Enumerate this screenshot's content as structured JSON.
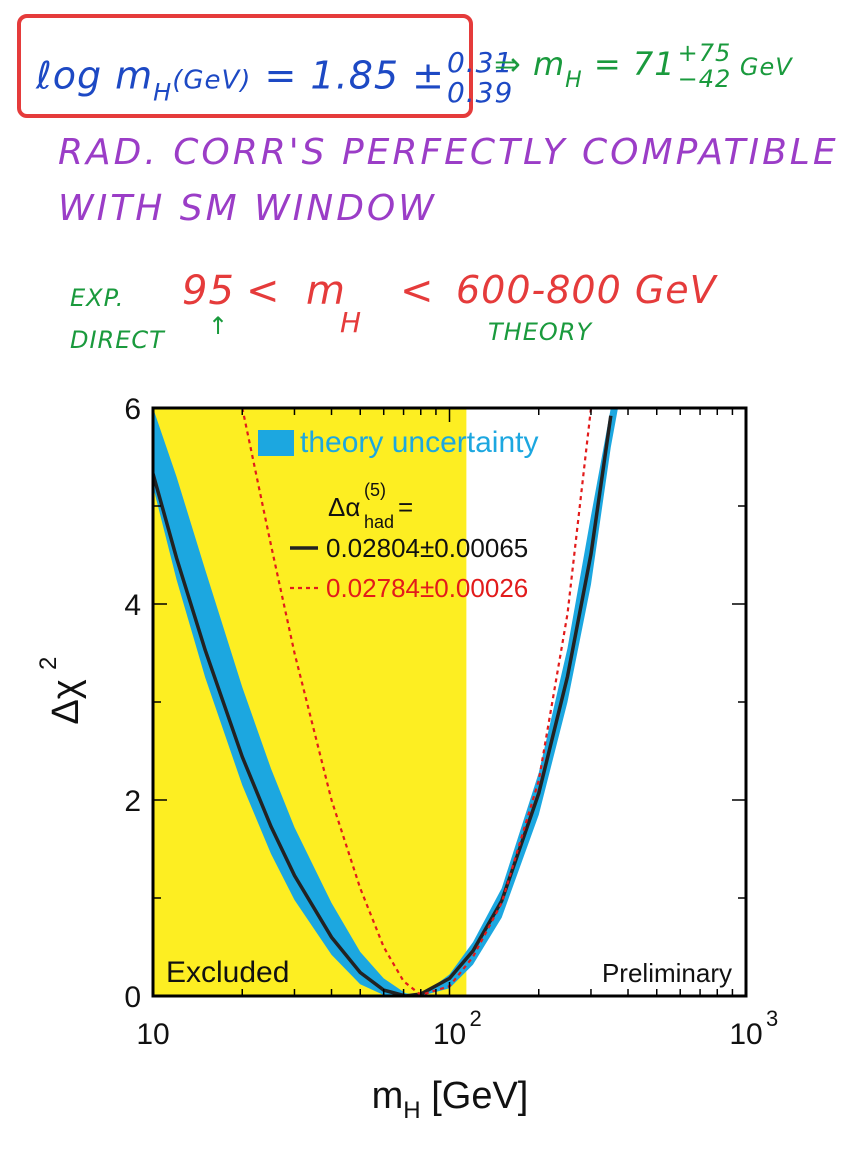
{
  "handwritten": {
    "formula_lhs": "ℓog m",
    "formula_lhs_sub": "H",
    "formula_lhs_unit": "(GeV)",
    "formula_eq": " = 1.85 ±",
    "formula_err_up": "0.31",
    "formula_err_down": "0.39",
    "result_arrow": "⇒ m",
    "result_sub": "H",
    "result_value": " = 71",
    "result_err_up": "+75",
    "result_err_down": "−42",
    "result_unit": " GeV",
    "line1": "RAD. CORR'S   PERFECTLY  COMPATIBLE",
    "line2": "WITH   SM   WINDOW",
    "exp": "EXP.",
    "direct": "DIRECT",
    "direct_arrow": "↑",
    "range_lower": "95",
    "range_lt": "<",
    "range_m": "m",
    "range_m_sub": "H",
    "range_upper": "600-800 GeV",
    "theory": "THEORY"
  },
  "chart_data": {
    "type": "line",
    "xlabel": "m",
    "xlabel_sub": "H",
    "xlabel_unit": " [GeV]",
    "ylabel": "Δχ",
    "ylabel_sup": "2",
    "x_scale": "log",
    "xlim": [
      10,
      1000
    ],
    "ylim": [
      0,
      6
    ],
    "x_ticks": [
      {
        "value": 10,
        "base": "10",
        "exp": ""
      },
      {
        "value": 100,
        "base": "10",
        "exp": "2"
      },
      {
        "value": 1000,
        "base": "10",
        "exp": "3"
      }
    ],
    "y_ticks": [
      0,
      2,
      4,
      6
    ],
    "excluded_region": {
      "xmax": 114,
      "label": "Excluded",
      "color": "#fdee22"
    },
    "preliminary_label": "Preliminary",
    "legend": {
      "band_label": "theory uncertainty",
      "band_color": "#1ca7e0",
      "header": "Δα",
      "header_sub": "had",
      "header_sup": "(5)",
      "header_eq": " =",
      "solid_label": "0.02804±0.00065",
      "dashed_label": "0.02784±0.00026",
      "solid_color": "#222222",
      "dashed_color": "#e21b1b"
    },
    "series": [
      {
        "name": "0.02804±0.00065",
        "style": "solid",
        "x": [
          10,
          12,
          15,
          20,
          25,
          30,
          40,
          50,
          60,
          71,
          80,
          100,
          120,
          150,
          200,
          250,
          300,
          350
        ],
        "y": [
          5.33,
          4.47,
          3.53,
          2.44,
          1.73,
          1.23,
          0.6,
          0.24,
          0.06,
          0.0,
          0.02,
          0.18,
          0.46,
          0.97,
          2.07,
          3.26,
          4.51,
          5.92
        ]
      },
      {
        "name": "0.02784±0.00026",
        "style": "dashed",
        "x": [
          20,
          25,
          30,
          40,
          50,
          60,
          70,
          80,
          100,
          120,
          150,
          200,
          250,
          300
        ],
        "y": [
          6.0,
          4.6,
          3.5,
          2.0,
          1.1,
          0.5,
          0.15,
          0.01,
          0.1,
          0.4,
          0.95,
          2.2,
          3.9,
          6.0
        ]
      }
    ],
    "band": {
      "x": [
        10,
        12,
        15,
        20,
        25,
        30,
        40,
        50,
        60,
        71,
        80,
        100,
        120,
        150,
        200,
        250,
        300,
        350,
        370
      ],
      "ylow": [
        5.2,
        4.25,
        3.25,
        2.15,
        1.45,
        0.98,
        0.42,
        0.12,
        0.01,
        0.0,
        0.0,
        0.08,
        0.32,
        0.8,
        1.85,
        3.0,
        4.2,
        5.6,
        6.0
      ],
      "yhigh": [
        6.0,
        5.3,
        4.35,
        3.15,
        2.32,
        1.72,
        0.95,
        0.45,
        0.18,
        0.03,
        0.0,
        0.22,
        0.55,
        1.1,
        2.28,
        3.55,
        4.9,
        6.0,
        6.0
      ]
    }
  }
}
